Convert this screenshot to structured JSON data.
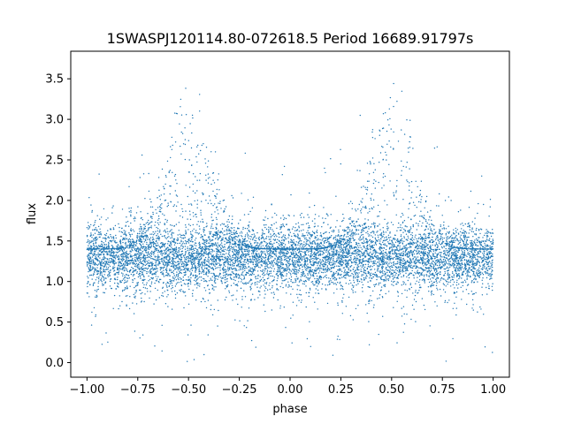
{
  "chart_data": {
    "type": "scatter",
    "title": "1SWASPJ120114.80-072618.5 Period 16689.91797s",
    "xlabel": "phase",
    "ylabel": "flux",
    "xlim": [
      -1.08,
      1.08
    ],
    "ylim": [
      -0.18,
      3.84
    ],
    "x_ticks": [
      -1.0,
      -0.75,
      -0.5,
      -0.25,
      0.0,
      0.25,
      0.5,
      0.75,
      1.0
    ],
    "x_tick_labels": [
      "−1.00",
      "−0.75",
      "−0.50",
      "−0.25",
      "0.00",
      "0.25",
      "0.50",
      "0.75",
      "1.00"
    ],
    "y_ticks": [
      0.0,
      0.5,
      1.0,
      1.5,
      2.0,
      2.5,
      3.0,
      3.5
    ],
    "y_tick_labels": [
      "0.0",
      "0.5",
      "1.0",
      "1.5",
      "2.0",
      "2.5",
      "3.0",
      "3.5"
    ],
    "grid": false,
    "series": [
      {
        "color": "#1f77b4",
        "x_range": [
          -1.0,
          1.0
        ],
        "density_profile": {
          "description": "dense band of points across all phases",
          "band_center_flux": 1.3,
          "band_spread_flux": 0.2,
          "secondary_peak_phases": [
            -0.5,
            0.5
          ],
          "secondary_peak_flux": 2.6,
          "max_flux": 3.65,
          "min_flux": 0.0
        }
      }
    ]
  }
}
